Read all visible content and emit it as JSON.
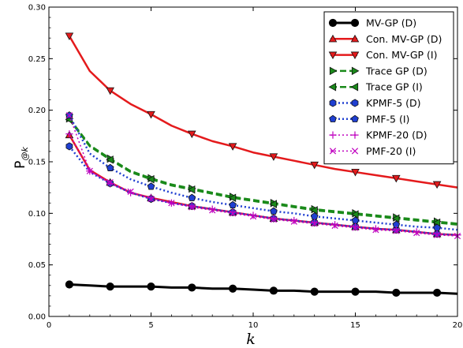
{
  "chart_data": {
    "type": "line",
    "title": "",
    "xlabel": "k",
    "ylabel_main": "P",
    "ylabel_sub": "@k",
    "xlim": [
      0,
      20
    ],
    "ylim": [
      0.0,
      0.3
    ],
    "xticks": [
      "0",
      "5",
      "10",
      "15",
      "20"
    ],
    "yticks": [
      "0.00",
      "0.05",
      "0.10",
      "0.15",
      "0.20",
      "0.25",
      "0.30"
    ],
    "grid": false,
    "legend_position": "top-right",
    "x": [
      1,
      2,
      3,
      4,
      5,
      6,
      7,
      8,
      9,
      10,
      11,
      12,
      13,
      14,
      15,
      16,
      17,
      18,
      19,
      20
    ],
    "series": [
      {
        "name": "MV-GP (D)",
        "color": "#000000",
        "line": "solid",
        "width": 3,
        "marker": "circle",
        "marker_x": [
          1,
          3,
          5,
          7,
          9,
          11,
          13,
          15,
          17,
          19
        ],
        "values": [
          0.031,
          0.03,
          0.029,
          0.029,
          0.029,
          0.028,
          0.028,
          0.027,
          0.027,
          0.026,
          0.025,
          0.025,
          0.024,
          0.024,
          0.024,
          0.024,
          0.023,
          0.023,
          0.023,
          0.022
        ]
      },
      {
        "name": "Con. MV-GP (D)",
        "color": "#e41a1c",
        "line": "solid",
        "width": 2.5,
        "marker": "triangle-up",
        "marker_x": [
          1,
          3,
          5,
          7,
          9,
          11,
          13,
          15,
          17,
          19
        ],
        "values": [
          0.176,
          0.142,
          0.13,
          0.12,
          0.115,
          0.111,
          0.107,
          0.104,
          0.101,
          0.098,
          0.095,
          0.093,
          0.091,
          0.089,
          0.087,
          0.085,
          0.084,
          0.082,
          0.08,
          0.079
        ]
      },
      {
        "name": "Con. MV-GP (I)",
        "color": "#e41a1c",
        "line": "solid",
        "width": 2.5,
        "marker": "triangle-down",
        "marker_x": [
          1,
          3,
          5,
          7,
          9,
          11,
          13,
          15,
          17,
          19
        ],
        "values": [
          0.272,
          0.238,
          0.219,
          0.206,
          0.196,
          0.185,
          0.177,
          0.17,
          0.165,
          0.159,
          0.155,
          0.151,
          0.147,
          0.143,
          0.14,
          0.137,
          0.134,
          0.131,
          0.128,
          0.125
        ]
      },
      {
        "name": "Trace GP (D)",
        "color": "#1a8a1a",
        "line": "dashed",
        "width": 2.5,
        "marker": "triangle-right",
        "marker_x": [
          1,
          3,
          5,
          7,
          9,
          11,
          13,
          15,
          17,
          19
        ],
        "values": [
          0.192,
          0.166,
          0.153,
          0.141,
          0.134,
          0.128,
          0.124,
          0.12,
          0.116,
          0.113,
          0.11,
          0.107,
          0.104,
          0.102,
          0.1,
          0.098,
          0.096,
          0.094,
          0.092,
          0.09
        ]
      },
      {
        "name": "Trace GP (I)",
        "color": "#1a8a1a",
        "line": "dashed",
        "width": 2.5,
        "marker": "triangle-left",
        "marker_x": [
          1,
          3,
          5,
          7,
          9,
          11,
          13,
          15,
          17,
          19
        ],
        "values": [
          0.191,
          0.165,
          0.152,
          0.14,
          0.133,
          0.127,
          0.123,
          0.119,
          0.115,
          0.112,
          0.109,
          0.106,
          0.103,
          0.101,
          0.099,
          0.097,
          0.095,
          0.093,
          0.091,
          0.089
        ]
      },
      {
        "name": "KPMF-5 (D)",
        "color": "#1f3fd1",
        "line": "dotted",
        "width": 2.5,
        "marker": "hexagon",
        "marker_x": [
          1,
          3,
          5,
          7,
          9,
          11,
          13,
          15,
          17,
          19
        ],
        "values": [
          0.165,
          0.14,
          0.129,
          0.12,
          0.114,
          0.11,
          0.107,
          0.104,
          0.101,
          0.098,
          0.095,
          0.093,
          0.091,
          0.089,
          0.087,
          0.085,
          0.084,
          0.082,
          0.08,
          0.079
        ]
      },
      {
        "name": "PMF-5 (I)",
        "color": "#1f3fd1",
        "line": "dotted",
        "width": 2.5,
        "marker": "pentagon",
        "marker_x": [
          1,
          3,
          5,
          7,
          9,
          11,
          13,
          15,
          17,
          19
        ],
        "values": [
          0.195,
          0.158,
          0.144,
          0.133,
          0.126,
          0.12,
          0.115,
          0.111,
          0.108,
          0.105,
          0.102,
          0.1,
          0.097,
          0.095,
          0.093,
          0.091,
          0.089,
          0.087,
          0.086,
          0.084
        ]
      },
      {
        "name": "KPMF-20 (D)",
        "color": "#bf00bf",
        "line": "dotted",
        "width": 1.5,
        "marker": "plus",
        "marker_x": [
          1,
          2,
          3,
          4,
          5,
          6,
          7,
          8,
          9,
          10,
          11,
          12,
          13,
          14,
          15,
          16,
          17,
          18,
          19,
          20
        ],
        "values": [
          0.177,
          0.141,
          0.129,
          0.12,
          0.115,
          0.11,
          0.107,
          0.104,
          0.101,
          0.098,
          0.095,
          0.093,
          0.091,
          0.089,
          0.087,
          0.085,
          0.084,
          0.082,
          0.08,
          0.079
        ]
      },
      {
        "name": "PMF-20 (I)",
        "color": "#bf00bf",
        "line": "dotted",
        "width": 1.5,
        "marker": "x",
        "marker_x": [
          1,
          2,
          3,
          4,
          5,
          6,
          7,
          8,
          9,
          10,
          11,
          12,
          13,
          14,
          15,
          16,
          17,
          18,
          19,
          20
        ],
        "values": [
          0.195,
          0.141,
          0.13,
          0.121,
          0.114,
          0.11,
          0.106,
          0.103,
          0.1,
          0.097,
          0.094,
          0.092,
          0.09,
          0.088,
          0.086,
          0.084,
          0.083,
          0.081,
          0.079,
          0.078
        ]
      }
    ]
  }
}
